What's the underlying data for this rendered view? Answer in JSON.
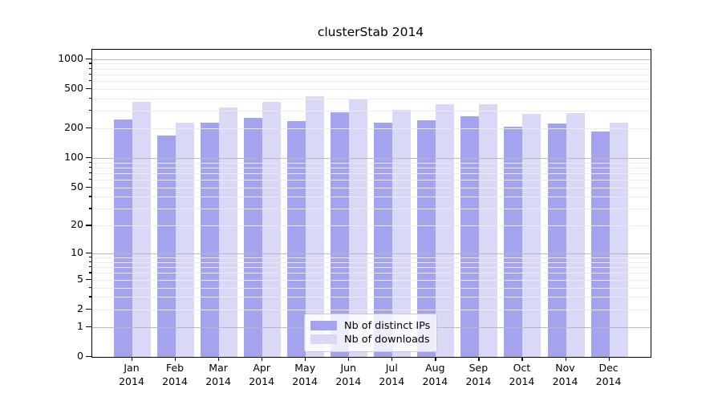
{
  "title": "clusterStab 2014",
  "chart_data": {
    "type": "bar",
    "title": "clusterStab 2014",
    "year": "2014",
    "categories": [
      "Jan",
      "Feb",
      "Mar",
      "Apr",
      "May",
      "Jun",
      "Jul",
      "Aug",
      "Sep",
      "Oct",
      "Nov",
      "Dec"
    ],
    "x_tick_labels": [
      "Jan 2014",
      "Feb 2014",
      "Mar 2014",
      "Apr 2014",
      "May 2014",
      "Jun 2014",
      "Jul 2014",
      "Aug 2014",
      "Sep 2014",
      "Oct 2014",
      "Nov 2014",
      "Dec 2014"
    ],
    "series": [
      {
        "name": "Nb of distinct IPs",
        "color": "#a3a3ee",
        "values": [
          246,
          170,
          230,
          257,
          236,
          292,
          226,
          239,
          263,
          206,
          224,
          186
        ]
      },
      {
        "name": "Nb of downloads",
        "color": "#d9d9f7",
        "values": [
          370,
          227,
          328,
          368,
          425,
          388,
          310,
          352,
          352,
          281,
          286,
          226
        ]
      }
    ],
    "yscale": "log1p",
    "yticks": [
      0,
      1,
      2,
      5,
      10,
      20,
      50,
      100,
      200,
      500,
      1000
    ],
    "ylim": [
      0,
      1250
    ],
    "xlabel": "",
    "ylabel": "",
    "grid": "both",
    "grid_above_bars": true,
    "legend_position": "lower center",
    "colors": {
      "major_grid": "#b9b9b9",
      "minor_grid": "#ebebeb",
      "spine": "#000000",
      "background": "#ffffff"
    }
  }
}
